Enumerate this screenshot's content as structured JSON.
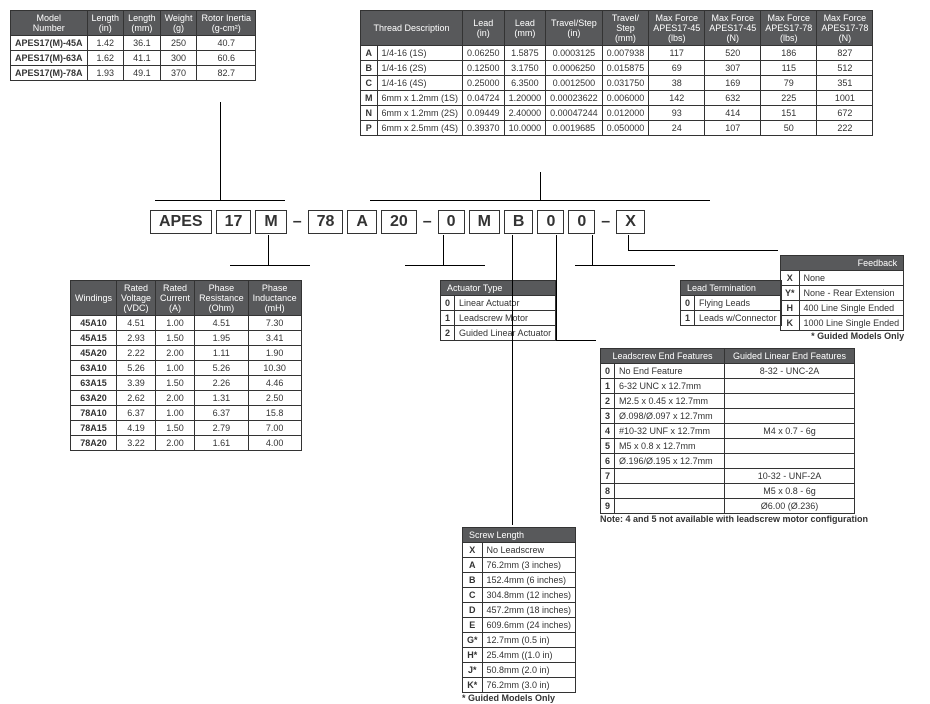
{
  "model_table": {
    "headers": [
      "Model\nNumber",
      "Length\n(in)",
      "Length\n(mm)",
      "Weight\n(g)",
      "Rotor Inertia\n(g-cm²)"
    ],
    "rows": [
      [
        "APES17(M)-45A",
        "1.42",
        "36.1",
        "250",
        "40.7"
      ],
      [
        "APES17(M)-63A",
        "1.62",
        "41.1",
        "300",
        "60.6"
      ],
      [
        "APES17(M)-78A",
        "1.93",
        "49.1",
        "370",
        "82.7"
      ]
    ]
  },
  "thread_table": {
    "headers": [
      "Thread Description",
      "Lead\n(in)",
      "Lead\n(mm)",
      "Travel/Step\n(in)",
      "Travel/\nStep\n(mm)",
      "Max Force\nAPES17-45\n(lbs)",
      "Max Force\nAPES17-45\n(N)",
      "Max Force\nAPES17-78\n(lbs)",
      "Max Force\nAPES17-78\n(N)"
    ],
    "rows": [
      [
        "A",
        "1/4-16 (1S)",
        "0.06250",
        "1.5875",
        "0.0003125",
        "0.007938",
        "117",
        "520",
        "186",
        "827"
      ],
      [
        "B",
        "1/4-16 (2S)",
        "0.12500",
        "3.1750",
        "0.0006250",
        "0.015875",
        "69",
        "307",
        "115",
        "512"
      ],
      [
        "C",
        "1/4-16 (4S)",
        "0.25000",
        "6.3500",
        "0.0012500",
        "0.031750",
        "38",
        "169",
        "79",
        "351"
      ],
      [
        "M",
        "6mm x 1.2mm (1S)",
        "0.04724",
        "1.20000",
        "0.00023622",
        "0.006000",
        "142",
        "632",
        "225",
        "1001"
      ],
      [
        "N",
        "6mm x 1.2mm (2S)",
        "0.09449",
        "2.40000",
        "0.00047244",
        "0.012000",
        "93",
        "414",
        "151",
        "672"
      ],
      [
        "P",
        "6mm x 2.5mm (4S)",
        "0.39370",
        "10.0000",
        "0.0019685",
        "0.050000",
        "24",
        "107",
        "50",
        "222"
      ]
    ]
  },
  "partnum": [
    "APES",
    "17",
    "M",
    "–",
    "78",
    "A",
    "20",
    "–",
    "0",
    "M",
    "B",
    "0",
    "0",
    "–",
    "X"
  ],
  "windings": {
    "headers": [
      "Windings",
      "Rated\nVoltage\n(VDC)",
      "Rated\nCurrent\n(A)",
      "Phase\nResistance\n(Ohm)",
      "Phase\nInductance\n(mH)"
    ],
    "rows": [
      [
        "45A10",
        "4.51",
        "1.00",
        "4.51",
        "7.30"
      ],
      [
        "45A15",
        "2.93",
        "1.50",
        "1.95",
        "3.41"
      ],
      [
        "45A20",
        "2.22",
        "2.00",
        "1.11",
        "1.90"
      ],
      [
        "63A10",
        "5.26",
        "1.00",
        "5.26",
        "10.30"
      ],
      [
        "63A15",
        "3.39",
        "1.50",
        "2.26",
        "4.46"
      ],
      [
        "63A20",
        "2.62",
        "2.00",
        "1.31",
        "2.50"
      ],
      [
        "78A10",
        "6.37",
        "1.00",
        "6.37",
        "15.8"
      ],
      [
        "78A15",
        "4.19",
        "1.50",
        "2.79",
        "7.00"
      ],
      [
        "78A20",
        "3.22",
        "2.00",
        "1.61",
        "4.00"
      ]
    ]
  },
  "actuator": {
    "title": "Actuator Type",
    "rows": [
      [
        "0",
        "Linear Actuator"
      ],
      [
        "1",
        "Leadscrew Motor"
      ],
      [
        "2",
        "Guided Linear Actuator"
      ]
    ]
  },
  "leadterm": {
    "title": "Lead Termination",
    "rows": [
      [
        "0",
        "Flying Leads"
      ],
      [
        "1",
        "Leads w/Connector"
      ]
    ]
  },
  "feedback": {
    "title": "Feedback",
    "rows": [
      [
        "X",
        "None"
      ],
      [
        "Y*",
        "None - Rear Extension"
      ],
      [
        "H",
        "400 Line Single Ended"
      ],
      [
        "K",
        "1000 Line Single Ended"
      ]
    ],
    "note": "* Guided Models Only"
  },
  "endfeat": {
    "h1": "Leadscrew End Features",
    "h2": "Guided Linear End Features",
    "rows": [
      [
        "0",
        "No End Feature",
        "8-32 - UNC-2A"
      ],
      [
        "1",
        "6-32 UNC x 12.7mm",
        ""
      ],
      [
        "2",
        "M2.5 x 0.45 x 12.7mm",
        ""
      ],
      [
        "3",
        "Ø.098/Ø.097 x 12.7mm",
        ""
      ],
      [
        "4",
        "#10-32 UNF x 12.7mm",
        "M4 x 0.7 - 6g"
      ],
      [
        "5",
        "M5 x 0.8 x 12.7mm",
        ""
      ],
      [
        "6",
        "Ø.196/Ø.195 x 12.7mm",
        ""
      ],
      [
        "7",
        "",
        "10-32 - UNF-2A"
      ],
      [
        "8",
        "",
        "M5 x 0.8 - 6g"
      ],
      [
        "9",
        "",
        "Ø6.00 (Ø.236)"
      ]
    ],
    "note": "Note: 4 and 5 not available with leadscrew motor configuration"
  },
  "screwlen": {
    "title": "Screw Length",
    "rows": [
      [
        "X",
        "No Leadscrew"
      ],
      [
        "A",
        "76.2mm (3 inches)"
      ],
      [
        "B",
        "152.4mm (6 inches)"
      ],
      [
        "C",
        "304.8mm (12 inches)"
      ],
      [
        "D",
        "457.2mm (18 inches)"
      ],
      [
        "E",
        "609.6mm (24 inches)"
      ],
      [
        "G*",
        "12.7mm (0.5 in)"
      ],
      [
        "H*",
        "25.4mm ((1.0 in)"
      ],
      [
        "J*",
        "50.8mm (2.0 in)"
      ],
      [
        "K*",
        "76.2mm (3.0 in)"
      ]
    ],
    "note": "* Guided Models Only"
  }
}
